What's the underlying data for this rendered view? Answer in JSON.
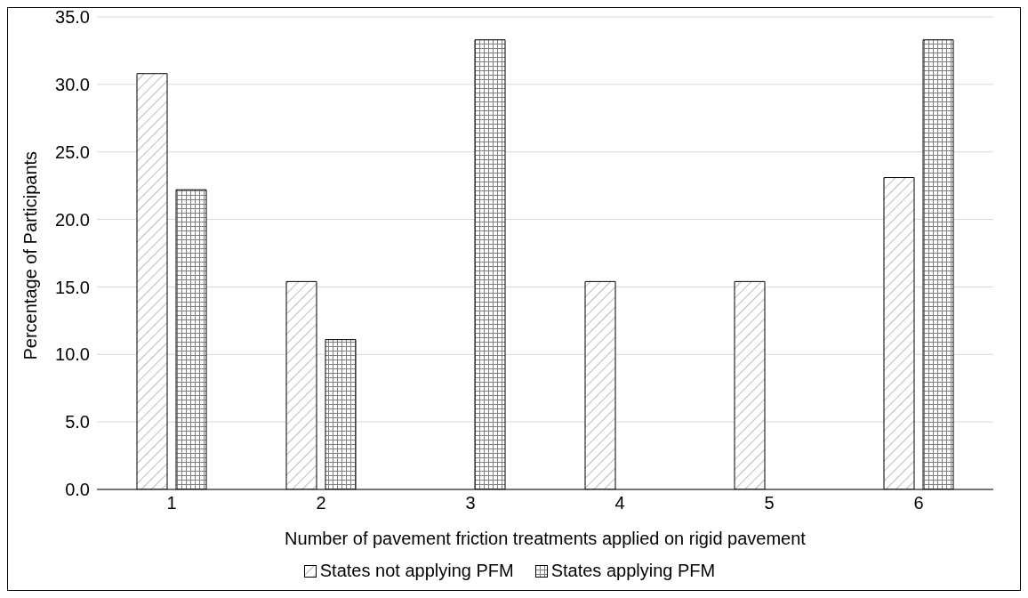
{
  "chart_data": {
    "type": "bar",
    "xlabel": "Number of pavement friction treatments applied on rigid pavement",
    "ylabel": "Percentage of Participants",
    "categories": [
      "1",
      "2",
      "3",
      "4",
      "5",
      "6"
    ],
    "series": [
      {
        "name": "States not applying PFM",
        "color": "#000000",
        "values": [
          30.8,
          15.4,
          0,
          15.4,
          15.4,
          23.1
        ]
      },
      {
        "name": "States applying PFM",
        "color": "#000000",
        "values": [
          22.2,
          11.1,
          33.3,
          0,
          0,
          33.3
        ]
      }
    ],
    "ylim": [
      0,
      35
    ],
    "yticks": [
      {
        "value": 0,
        "label": "0.0"
      },
      {
        "value": 5,
        "label": "5.0"
      },
      {
        "value": 10,
        "label": "10.0"
      },
      {
        "value": 15,
        "label": "15.0"
      },
      {
        "value": 20,
        "label": "20.0"
      },
      {
        "value": 25,
        "label": "25.0"
      },
      {
        "value": 30,
        "label": "30.0"
      },
      {
        "value": 35,
        "label": "35.0"
      }
    ],
    "grid": "y",
    "legend": "bottom"
  }
}
